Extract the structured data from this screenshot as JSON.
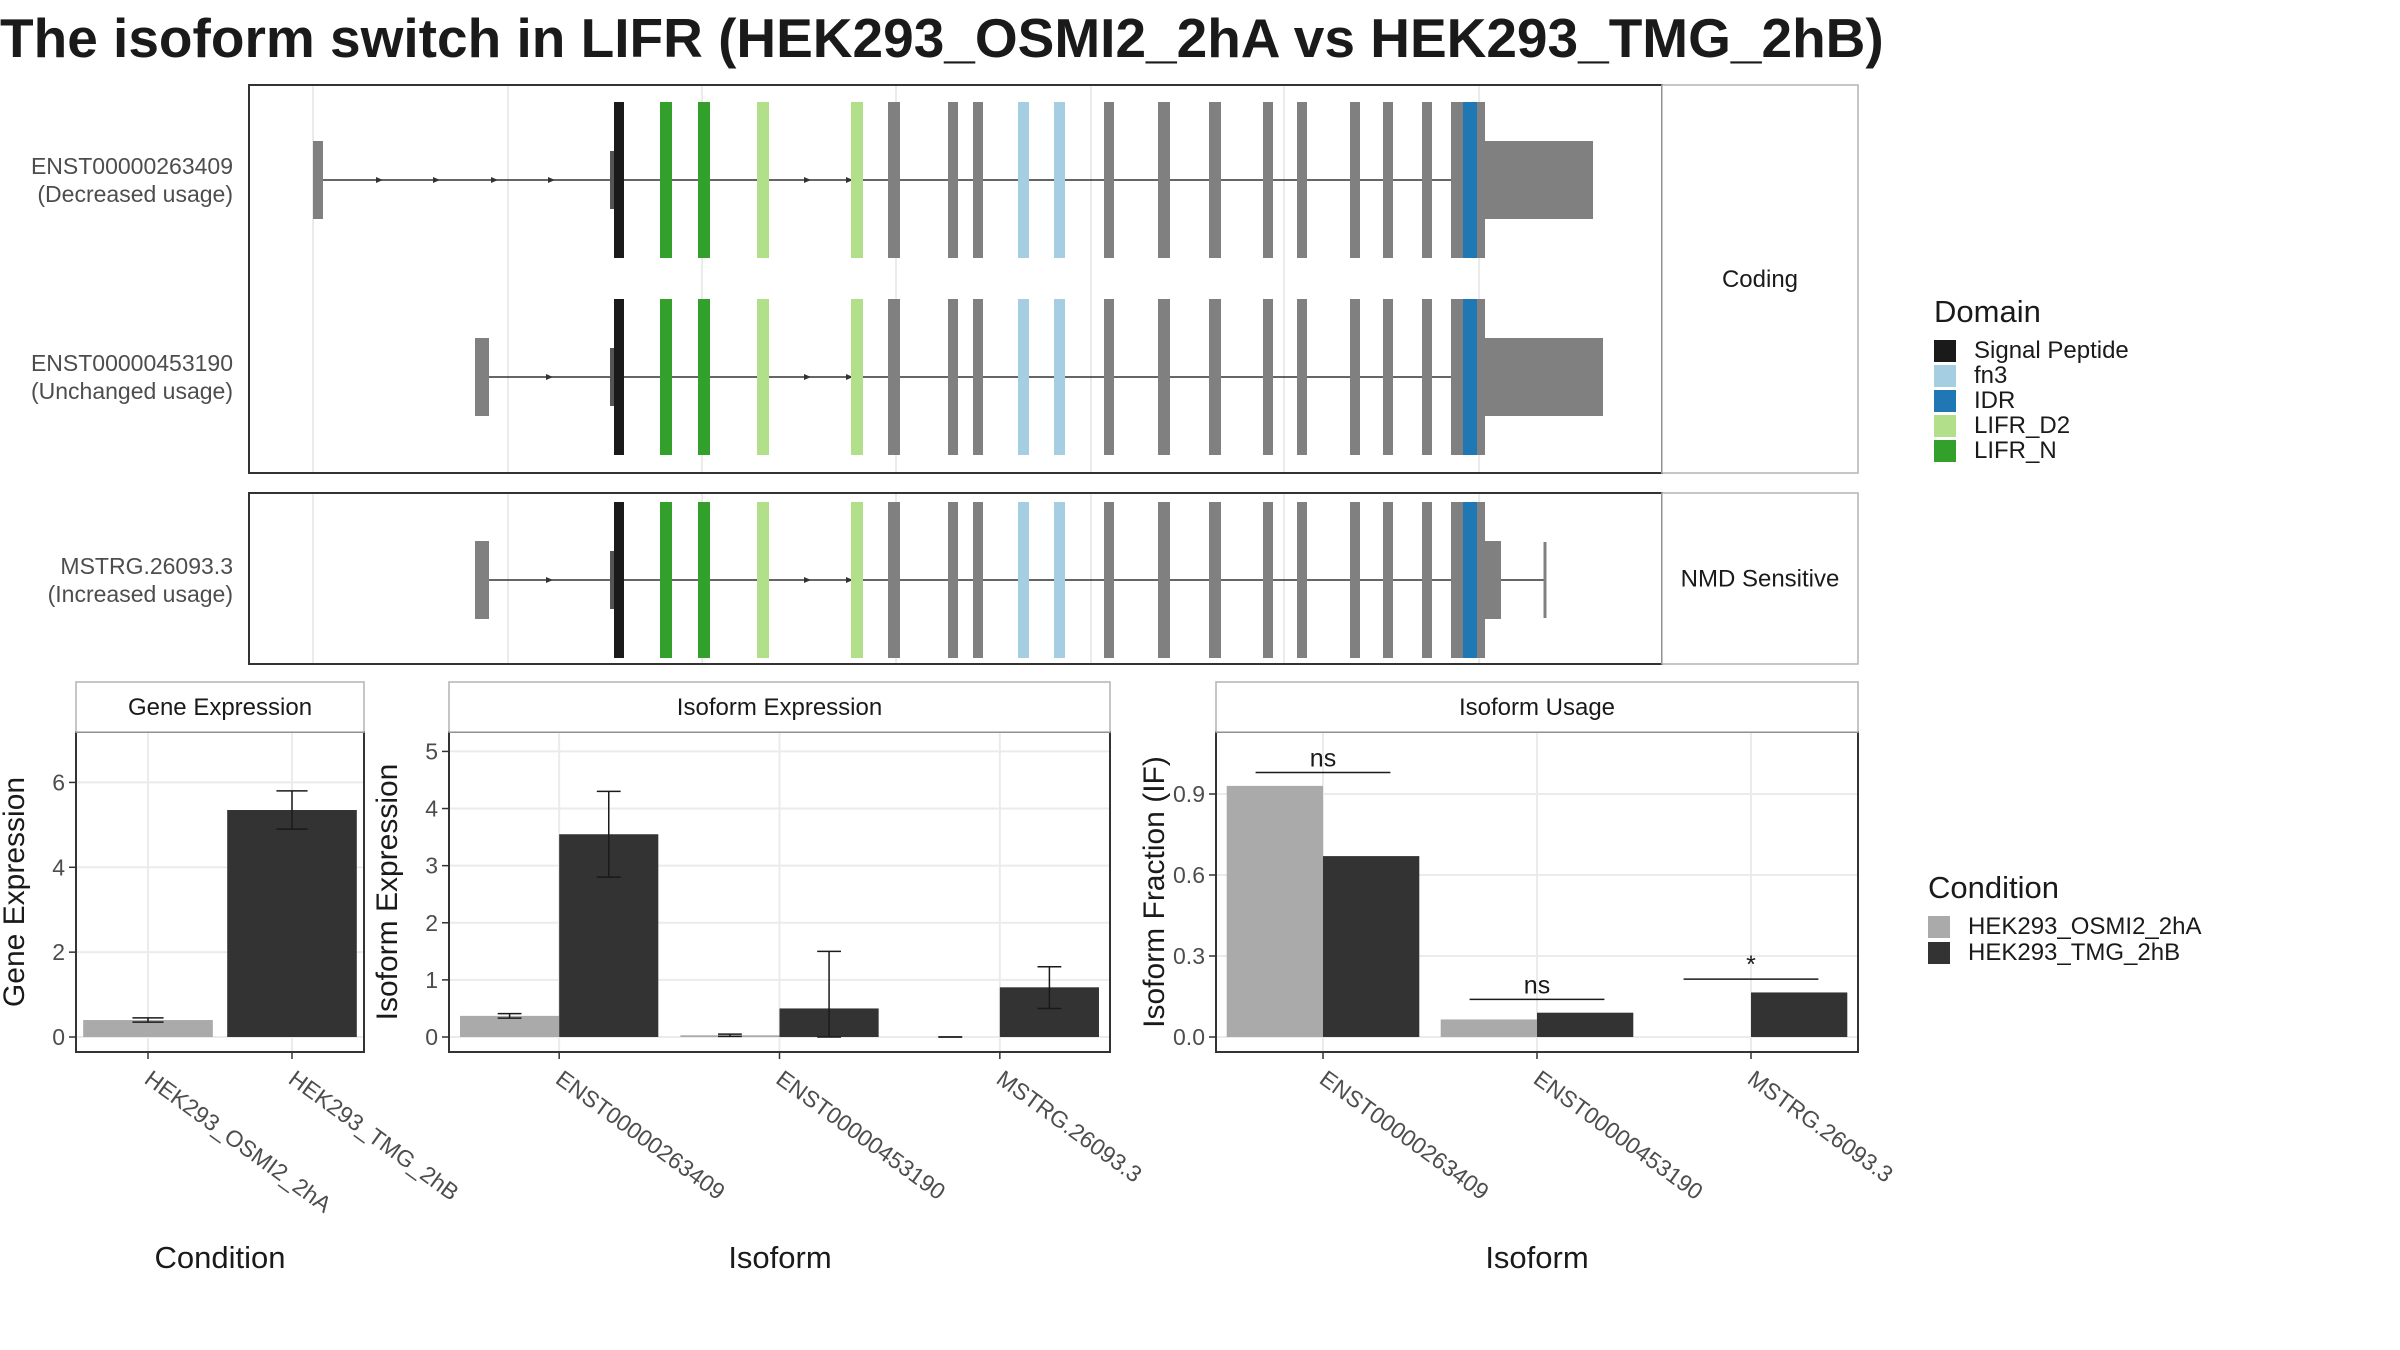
{
  "title": "The isoform switch in LIFR (HEK293_OSMI2_2hA vs HEK293_TMG_2hB)",
  "colors": {
    "signal_peptide": "#1a1a1a",
    "fn3": "#a6cee3",
    "idr": "#1f78b4",
    "lifr_d2": "#b2df8a",
    "lifr_n": "#33a02c",
    "exon_gray": "#808080",
    "cond_a": "#aaaaaa",
    "cond_b": "#333333"
  },
  "domain_legend": {
    "title": "Domain",
    "items": [
      {
        "label": "Signal Peptide",
        "color": "#1a1a1a"
      },
      {
        "label": "fn3",
        "color": "#a6cee3"
      },
      {
        "label": "IDR",
        "color": "#1f78b4"
      },
      {
        "label": "LIFR_D2",
        "color": "#b2df8a"
      },
      {
        "label": "LIFR_N",
        "color": "#33a02c"
      }
    ]
  },
  "condition_legend": {
    "title": "Condition",
    "items": [
      {
        "label": "HEK293_OSMI2_2hA",
        "color": "#aaaaaa"
      },
      {
        "label": "HEK293_TMG_2hB",
        "color": "#333333"
      }
    ]
  },
  "structure": {
    "facets": [
      "Coding",
      "NMD Sensitive"
    ],
    "transcripts": [
      {
        "id": "ENST00000263409",
        "usage": "(Decreased usage)",
        "facet": "Coding"
      },
      {
        "id": "ENST00000453190",
        "usage": "(Unchanged usage)",
        "facet": "Coding"
      },
      {
        "id": "MSTRG.26093.3",
        "usage": "(Increased usage)",
        "facet": "NMD Sensitive"
      }
    ]
  },
  "chart_data": [
    {
      "type": "bar",
      "title": "Gene Expression",
      "xlabel": "Condition",
      "ylabel": "Gene Expression",
      "ylim": [
        0,
        7
      ],
      "yticks": [
        0,
        2,
        4,
        6
      ],
      "categories": [
        "HEK293_OSMI2_2hA",
        "HEK293_TMG_2hB"
      ],
      "values": [
        0.4,
        5.35
      ],
      "errors": [
        [
          0.35,
          0.45
        ],
        [
          4.9,
          5.8
        ]
      ]
    },
    {
      "type": "bar",
      "title": "Isoform Expression",
      "xlabel": "Isoform",
      "ylabel": "Isoform Expression",
      "ylim": [
        0,
        5.2
      ],
      "yticks": [
        0,
        1,
        2,
        3,
        4,
        5
      ],
      "categories": [
        "ENST00000263409",
        "ENST00000453190",
        "MSTRG.26093.3"
      ],
      "series": [
        {
          "name": "HEK293_OSMI2_2hA",
          "values": [
            0.37,
            0.03,
            0.0
          ],
          "errors": [
            [
              0.33,
              0.41
            ],
            [
              0.01,
              0.05
            ],
            [
              0.0,
              0.0
            ]
          ]
        },
        {
          "name": "HEK293_TMG_2hB",
          "values": [
            3.55,
            0.5,
            0.87
          ],
          "errors": [
            [
              2.8,
              4.3
            ],
            [
              0.0,
              1.5
            ],
            [
              0.5,
              1.23
            ]
          ]
        }
      ]
    },
    {
      "type": "bar",
      "title": "Isoform Usage",
      "xlabel": "Isoform",
      "ylabel": "Isoform Fraction (IF)",
      "ylim": [
        0,
        1.1
      ],
      "yticks": [
        "0.0",
        "0.3",
        "0.6",
        "0.9"
      ],
      "categories": [
        "ENST00000263409",
        "ENST00000453190",
        "MSTRG.26093.3"
      ],
      "series": [
        {
          "name": "HEK293_OSMI2_2hA",
          "values": [
            0.93,
            0.065,
            0.0
          ]
        },
        {
          "name": "HEK293_TMG_2hB",
          "values": [
            0.67,
            0.09,
            0.165
          ]
        }
      ],
      "significance": [
        "ns",
        "ns",
        "*"
      ]
    }
  ]
}
